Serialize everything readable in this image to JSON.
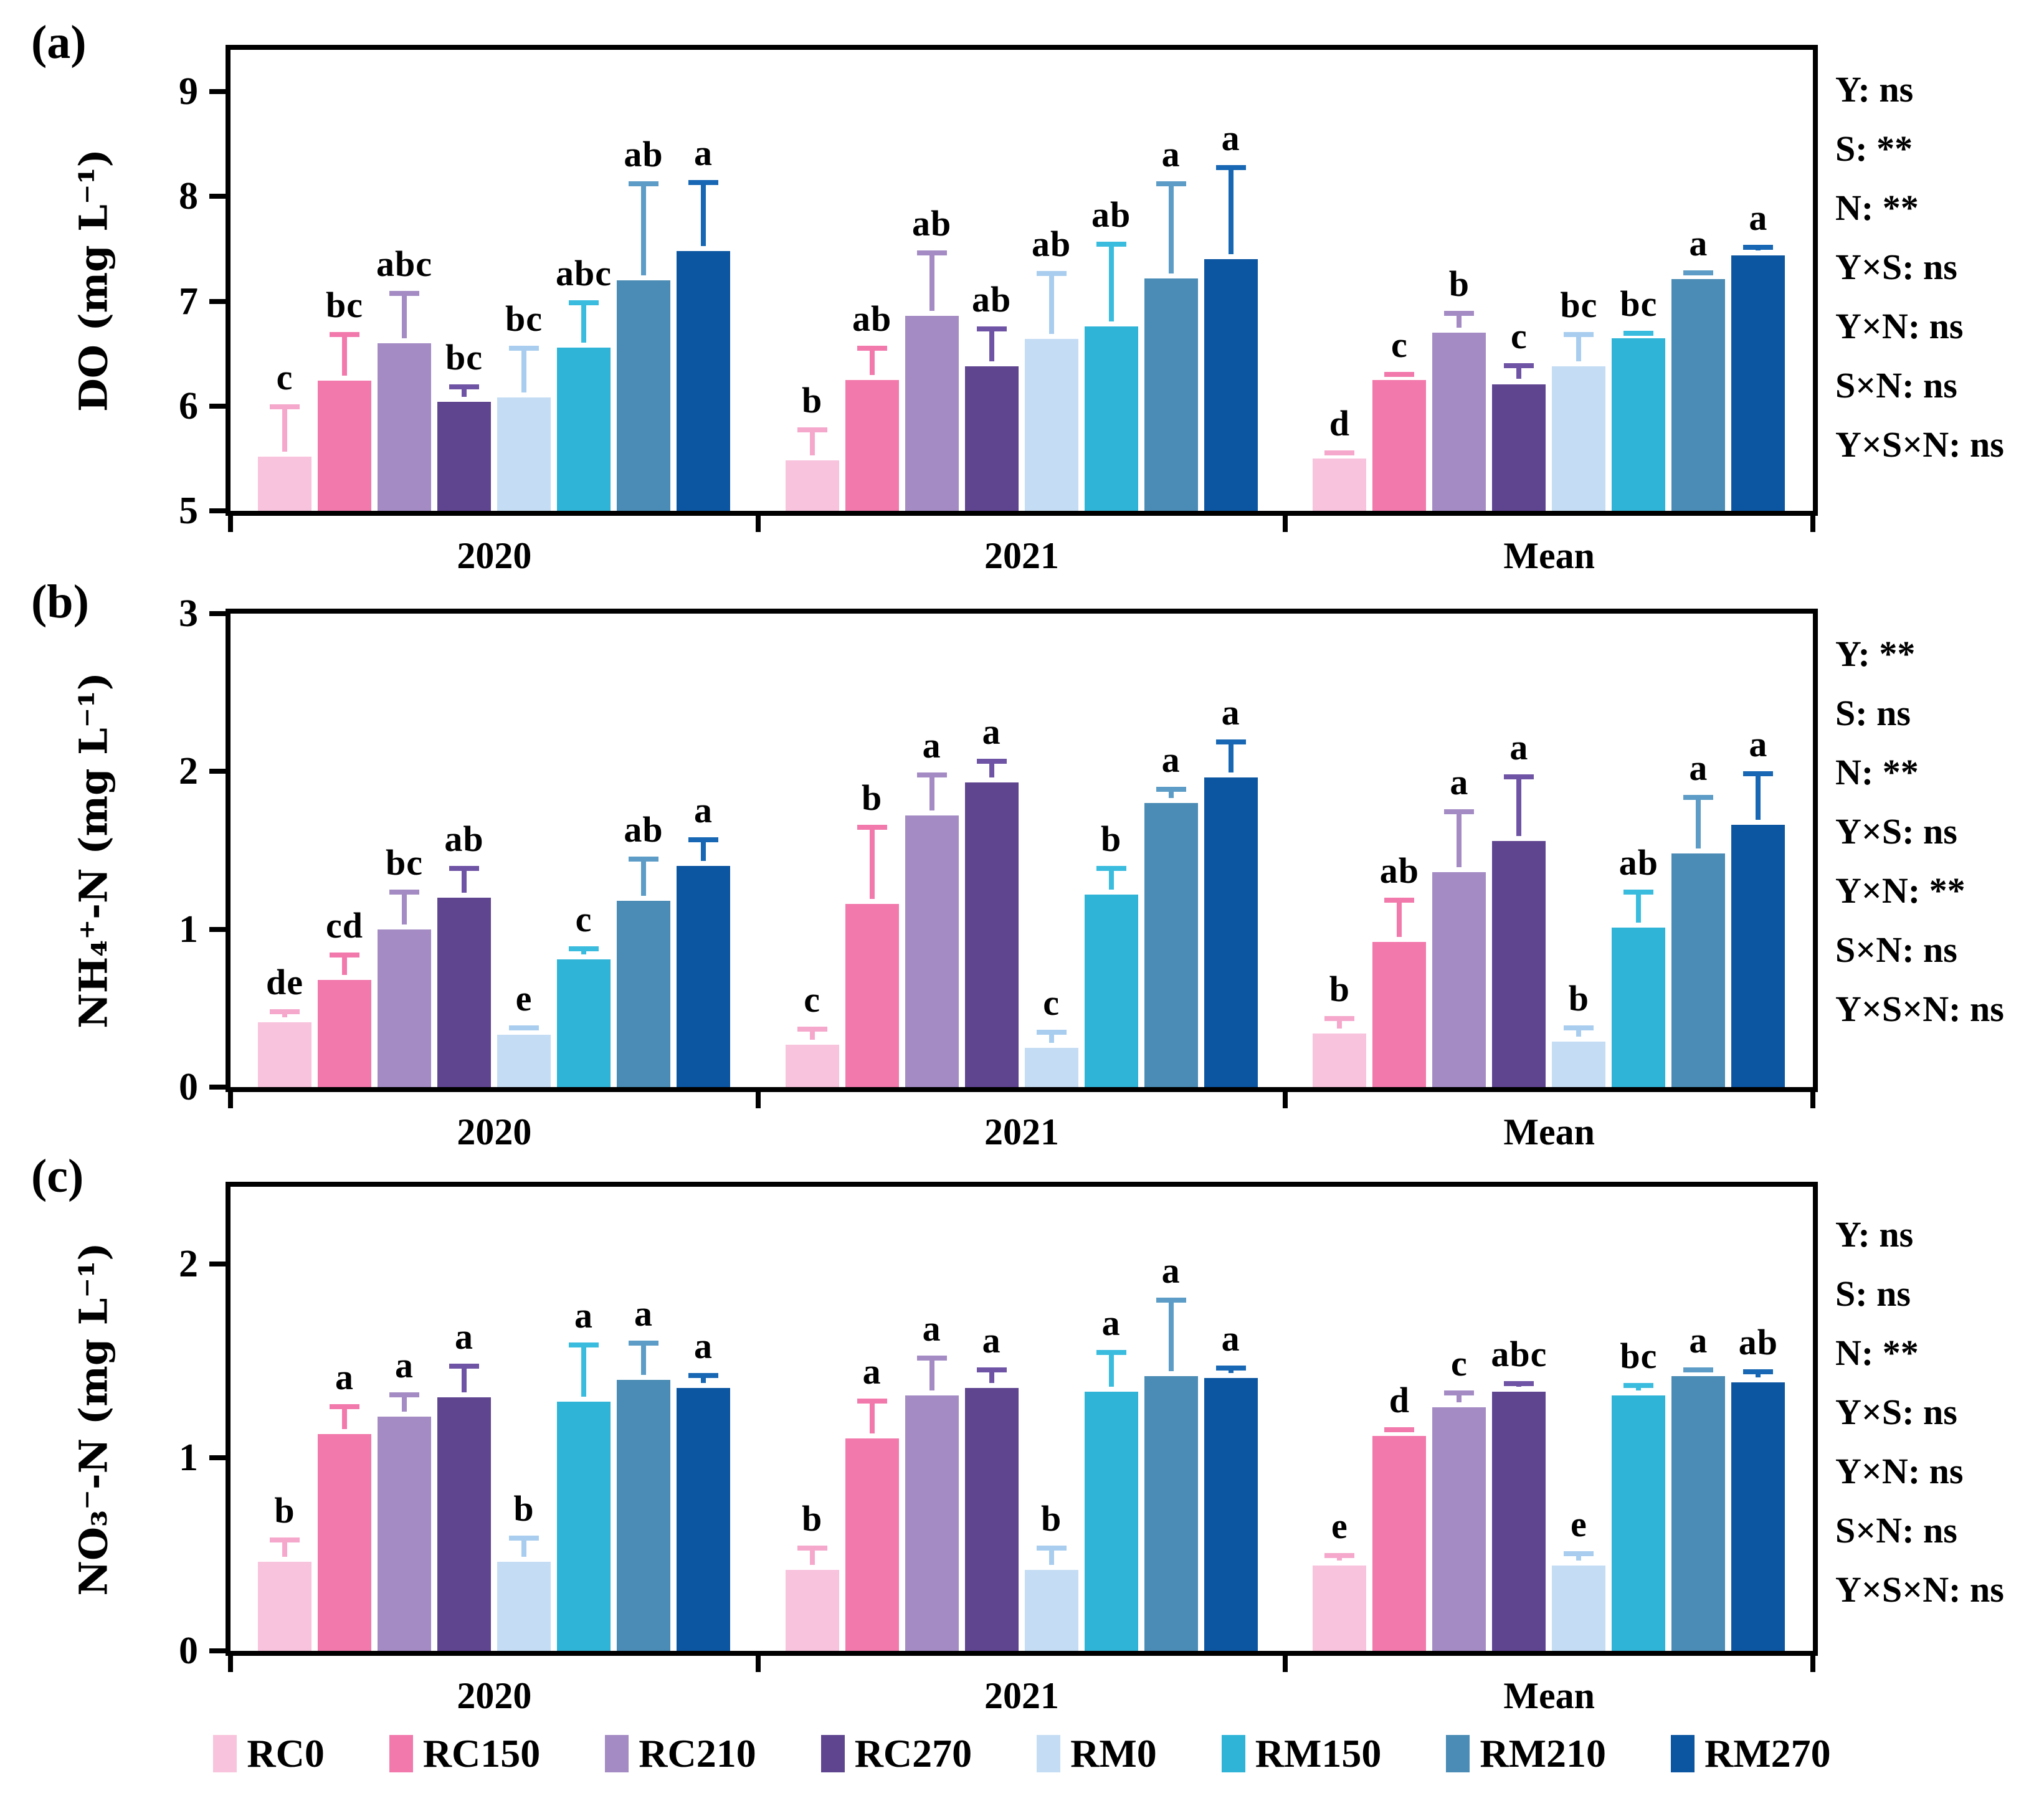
{
  "legend": {
    "items": [
      {
        "label": "RC0",
        "color": "#F8C3DC"
      },
      {
        "label": "RC150",
        "color": "#F279AC"
      },
      {
        "label": "RC210",
        "color": "#A48BC4"
      },
      {
        "label": "RC270",
        "color": "#5F4490"
      },
      {
        "label": "RM0",
        "color": "#C5DDF4"
      },
      {
        "label": "RM150",
        "color": "#2FB4D8"
      },
      {
        "label": "RM210",
        "color": "#4A8CB5"
      },
      {
        "label": "RM270",
        "color": "#0B55A1"
      }
    ]
  },
  "chart_data": [
    {
      "type": "bar",
      "panel_label": "(a)",
      "ylabel": "DO (mg L⁻¹)",
      "xlabel": "",
      "ylim": [
        5,
        9.4
      ],
      "yticks": [
        5,
        6,
        7,
        8,
        9
      ],
      "grid": false,
      "legend_position": "bottom",
      "categories": [
        "2020",
        "2021",
        "Mean"
      ],
      "anova": [
        "Y: ns",
        "S: **",
        "N: **",
        "Y×S: ns",
        "Y×N: ns",
        "S×N: ns",
        "Y×S×N: ns"
      ],
      "series": [
        {
          "name": "RC0",
          "color": "#F8C3DC",
          "error_color": "#F5A8CC",
          "values": [
            5.52,
            5.48,
            5.5
          ],
          "errors": [
            0.45,
            0.27,
            0.03
          ],
          "letters": [
            "c",
            "b",
            "d"
          ]
        },
        {
          "name": "RC150",
          "color": "#F279AC",
          "error_color": "#F279AC",
          "values": [
            6.24,
            6.25,
            6.25
          ],
          "errors": [
            0.42,
            0.28,
            0.03
          ],
          "letters": [
            "bc",
            "ab",
            "c"
          ]
        },
        {
          "name": "RC210",
          "color": "#A48BC4",
          "error_color": "#A48BC4",
          "values": [
            6.6,
            6.86,
            6.7
          ],
          "errors": [
            0.45,
            0.58,
            0.16
          ],
          "letters": [
            "abc",
            "ab",
            "b"
          ]
        },
        {
          "name": "RC270",
          "color": "#5F4490",
          "error_color": "#6F53A5",
          "values": [
            6.04,
            6.38,
            6.21
          ],
          "errors": [
            0.12,
            0.33,
            0.15
          ],
          "letters": [
            "bc",
            "ab",
            "c"
          ]
        },
        {
          "name": "RM0",
          "color": "#C5DDF4",
          "error_color": "#A9CDEF",
          "values": [
            6.08,
            6.64,
            6.38
          ],
          "errors": [
            0.45,
            0.6,
            0.28
          ],
          "letters": [
            "bc",
            "ab",
            "bc"
          ]
        },
        {
          "name": "RM150",
          "color": "#2FB4D8",
          "error_color": "#3ABCDE",
          "values": [
            6.56,
            6.76,
            6.65
          ],
          "errors": [
            0.4,
            0.76,
            0.02
          ],
          "letters": [
            "abc",
            "ab",
            "bc"
          ]
        },
        {
          "name": "RM210",
          "color": "#4A8CB5",
          "error_color": "#5C9CC6",
          "values": [
            7.2,
            7.22,
            7.21
          ],
          "errors": [
            0.9,
            0.88,
            0.04
          ],
          "letters": [
            "ab",
            "a",
            "a"
          ]
        },
        {
          "name": "RM270",
          "color": "#0B55A1",
          "error_color": "#1767B4",
          "values": [
            7.48,
            7.4,
            7.44
          ],
          "errors": [
            0.63,
            0.85,
            0.05
          ],
          "letters": [
            "a",
            "a",
            "a"
          ]
        }
      ]
    },
    {
      "type": "bar",
      "panel_label": "(b)",
      "ylabel": "NH₄⁺-N (mg L⁻¹)",
      "xlabel": "",
      "ylim": [
        0,
        3
      ],
      "yticks": [
        0,
        1,
        2,
        3
      ],
      "grid": false,
      "legend_position": "bottom",
      "categories": [
        "2020",
        "2021",
        "Mean"
      ],
      "anova": [
        "Y: **",
        "S: ns",
        "N: **",
        "Y×S: ns",
        "Y×N: **",
        "S×N: ns",
        "Y×S×N: ns"
      ],
      "series": [
        {
          "name": "RC0",
          "color": "#F8C3DC",
          "error_color": "#F5A8CC",
          "values": [
            0.41,
            0.27,
            0.34
          ],
          "errors": [
            0.05,
            0.08,
            0.08
          ],
          "letters": [
            "de",
            "c",
            "b"
          ]
        },
        {
          "name": "RC150",
          "color": "#F279AC",
          "error_color": "#F279AC",
          "values": [
            0.68,
            1.16,
            0.92
          ],
          "errors": [
            0.14,
            0.47,
            0.25
          ],
          "letters": [
            "cd",
            "b",
            "ab"
          ]
        },
        {
          "name": "RC210",
          "color": "#A48BC4",
          "error_color": "#A48BC4",
          "values": [
            1.0,
            1.72,
            1.36
          ],
          "errors": [
            0.22,
            0.24,
            0.37
          ],
          "letters": [
            "bc",
            "a",
            "a"
          ]
        },
        {
          "name": "RC270",
          "color": "#5F4490",
          "error_color": "#6F53A5",
          "values": [
            1.2,
            1.93,
            1.56
          ],
          "errors": [
            0.17,
            0.12,
            0.39
          ],
          "letters": [
            "ab",
            "a",
            "a"
          ]
        },
        {
          "name": "RM0",
          "color": "#C5DDF4",
          "error_color": "#A9CDEF",
          "values": [
            0.33,
            0.25,
            0.29
          ],
          "errors": [
            0.03,
            0.08,
            0.07
          ],
          "letters": [
            "e",
            "c",
            "b"
          ]
        },
        {
          "name": "RM150",
          "color": "#2FB4D8",
          "error_color": "#3ABCDE",
          "values": [
            0.81,
            1.22,
            1.01
          ],
          "errors": [
            0.05,
            0.15,
            0.21
          ],
          "letters": [
            "c",
            "b",
            "ab"
          ]
        },
        {
          "name": "RM210",
          "color": "#4A8CB5",
          "error_color": "#5C9CC6",
          "values": [
            1.18,
            1.8,
            1.48
          ],
          "errors": [
            0.25,
            0.07,
            0.34
          ],
          "letters": [
            "ab",
            "a",
            "a"
          ]
        },
        {
          "name": "RM270",
          "color": "#0B55A1",
          "error_color": "#1767B4",
          "values": [
            1.4,
            1.96,
            1.66
          ],
          "errors": [
            0.15,
            0.21,
            0.31
          ],
          "letters": [
            "a",
            "a",
            "a"
          ]
        }
      ]
    },
    {
      "type": "bar",
      "panel_label": "(c)",
      "ylabel": "NO₃⁻-N (mg L⁻¹)",
      "xlabel": "",
      "ylim": [
        0,
        2.4
      ],
      "yticks": [
        0,
        1,
        2
      ],
      "grid": false,
      "legend_position": "bottom",
      "categories": [
        "2020",
        "2021",
        "Mean"
      ],
      "anova": [
        "Y: ns",
        "S: ns",
        "N: **",
        "Y×S: ns",
        "Y×N: ns",
        "S×N: ns",
        "Y×S×N: ns"
      ],
      "series": [
        {
          "name": "RC0",
          "color": "#F8C3DC",
          "error_color": "#F5A8CC",
          "values": [
            0.46,
            0.42,
            0.44
          ],
          "errors": [
            0.1,
            0.1,
            0.04
          ],
          "letters": [
            "b",
            "b",
            "e"
          ]
        },
        {
          "name": "RC150",
          "color": "#F279AC",
          "error_color": "#F279AC",
          "values": [
            1.12,
            1.1,
            1.11
          ],
          "errors": [
            0.13,
            0.18,
            0.02
          ],
          "letters": [
            "a",
            "a",
            "d"
          ]
        },
        {
          "name": "RC210",
          "color": "#A48BC4",
          "error_color": "#A48BC4",
          "values": [
            1.21,
            1.32,
            1.26
          ],
          "errors": [
            0.1,
            0.18,
            0.06
          ],
          "letters": [
            "a",
            "a",
            "c"
          ]
        },
        {
          "name": "RC270",
          "color": "#5F4490",
          "error_color": "#6F53A5",
          "values": [
            1.31,
            1.36,
            1.34
          ],
          "errors": [
            0.15,
            0.08,
            0.03
          ],
          "letters": [
            "a",
            "a",
            "abc"
          ]
        },
        {
          "name": "RM0",
          "color": "#C5DDF4",
          "error_color": "#A9CDEF",
          "values": [
            0.46,
            0.42,
            0.44
          ],
          "errors": [
            0.11,
            0.1,
            0.05
          ],
          "letters": [
            "b",
            "b",
            "e"
          ]
        },
        {
          "name": "RM150",
          "color": "#2FB4D8",
          "error_color": "#3ABCDE",
          "values": [
            1.29,
            1.34,
            1.32
          ],
          "errors": [
            0.28,
            0.19,
            0.04
          ],
          "letters": [
            "a",
            "a",
            "bc"
          ]
        },
        {
          "name": "RM210",
          "color": "#4A8CB5",
          "error_color": "#5C9CC6",
          "values": [
            1.4,
            1.42,
            1.42
          ],
          "errors": [
            0.18,
            0.38,
            0.02
          ],
          "letters": [
            "a",
            "a",
            "a"
          ]
        },
        {
          "name": "RM270",
          "color": "#0B55A1",
          "error_color": "#1767B4",
          "values": [
            1.36,
            1.41,
            1.39
          ],
          "errors": [
            0.05,
            0.04,
            0.04
          ],
          "letters": [
            "a",
            "a",
            "ab"
          ]
        }
      ]
    }
  ]
}
